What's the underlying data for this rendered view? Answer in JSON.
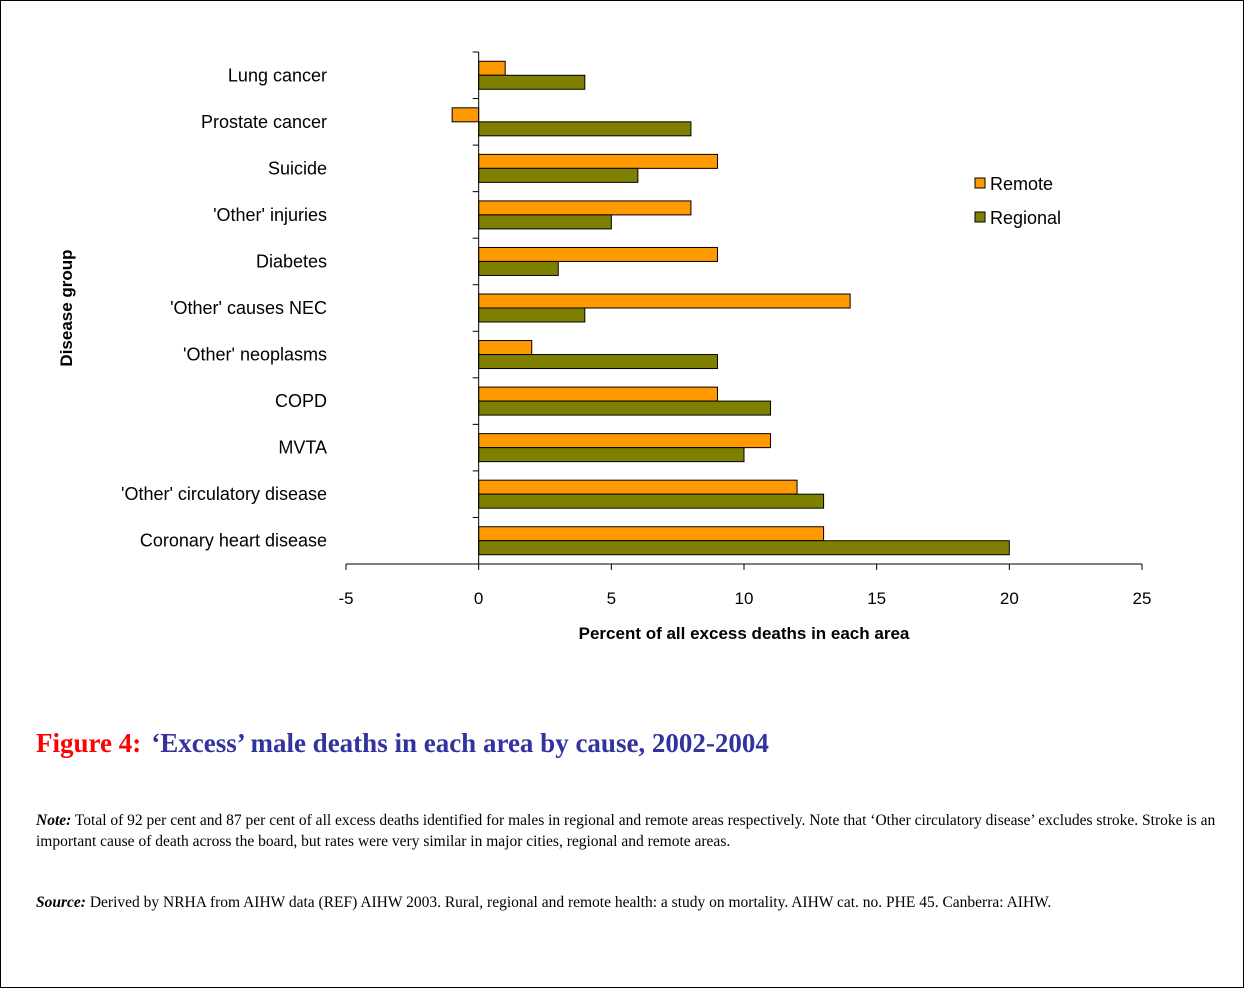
{
  "chart_data": {
    "type": "bar",
    "orientation": "horizontal",
    "categories": [
      "Lung cancer",
      "Prostate cancer",
      "Suicide",
      "'Other' injuries",
      "Diabetes",
      "'Other' causes NEC",
      "'Other' neoplasms",
      "COPD",
      "MVTA",
      "'Other' circulatory disease",
      "Coronary heart disease"
    ],
    "series": [
      {
        "name": "Remote",
        "color": "#ff9900",
        "values": [
          1,
          -1,
          9,
          8,
          9,
          14,
          2,
          9,
          11,
          12,
          13
        ]
      },
      {
        "name": "Regional",
        "color": "#808000",
        "values": [
          4,
          8,
          6,
          5,
          3,
          4,
          9,
          11,
          10,
          13,
          20
        ]
      }
    ],
    "xlabel": "Percent of all excess deaths in each area",
    "ylabel": "Disease group",
    "xlim": [
      -5,
      25
    ],
    "xticks": [
      -5,
      0,
      5,
      10,
      15,
      20,
      25
    ],
    "grid": false,
    "legend_position": "right"
  },
  "caption": {
    "label": "Figure 4:",
    "title": "‘Excess’ male deaths in each area by cause, 2002-2004"
  },
  "note": {
    "label": "Note:",
    "text": " Total of  92 per cent and 87 per cent of all excess deaths identified for males in regional and remote areas respectively. Note that ‘Other circulatory disease’ excludes stroke. Stroke is an important cause of death across the board, but rates were very similar in major cities, regional and remote areas."
  },
  "source": {
    "label": "Source:",
    "text": " Derived by NRHA from AIHW data (REF) AIHW 2003. Rural, regional and remote health: a study on mortality. AIHW cat. no. PHE 45. Canberra: AIHW."
  }
}
